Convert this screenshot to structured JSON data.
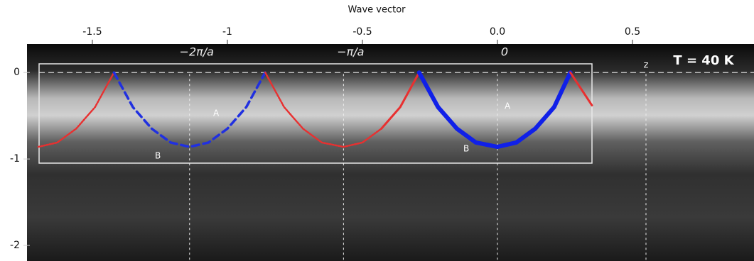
{
  "chart_data": {
    "type": "line",
    "title": "Wave vector",
    "annotation": "T = 40 K",
    "band_labels": [
      "A",
      "A",
      "B",
      "B"
    ],
    "xlim": [
      -1.742,
      0.95
    ],
    "ylim": [
      -2.18,
      0.33
    ],
    "xticks": [
      -1.5,
      -1,
      -0.5,
      {
        "value": 0,
        "label": "0.0"
      },
      0.5
    ],
    "yticks": [
      0,
      -1,
      -2
    ],
    "reference_lines": [
      {
        "value": -1.14,
        "label": "−2π/a"
      },
      {
        "value": -0.57,
        "label": "−π/a"
      },
      {
        "value": 0,
        "label": "0"
      },
      {
        "value": 0.55,
        "label": "z"
      }
    ],
    "series": [
      {
        "color": "#e83030",
        "style": "dotted",
        "x": [
          -1.7,
          -1.63,
          -1.56,
          -1.49,
          -1.42
        ],
        "values": [
          -0.86,
          -0.81,
          -0.65,
          -0.4,
          0
        ]
      },
      {
        "color": "#2030e0",
        "style": "dashed",
        "x": [
          -1.42,
          -1.35,
          -1.28,
          -1.21,
          -1.14,
          -1.07,
          -1.0,
          -0.93,
          -0.86
        ],
        "values": [
          0,
          -0.4,
          -0.65,
          -0.81,
          -0.86,
          -0.81,
          -0.65,
          -0.4,
          0
        ]
      },
      {
        "color": "#e83030",
        "style": "dotted",
        "x": [
          -0.86,
          -0.79,
          -0.72,
          -0.65,
          -0.57,
          -0.5,
          -0.43
        ],
        "values": [
          0,
          -0.4,
          -0.65,
          -0.81,
          -0.86,
          -0.81,
          -0.65
        ]
      },
      {
        "color": "#e83030",
        "style": "solid",
        "x": [
          -0.43,
          -0.36,
          -0.29
        ],
        "values": [
          -0.65,
          -0.4,
          0
        ]
      },
      {
        "color": "#1020e8",
        "style": "thick",
        "x": [
          -0.29,
          -0.22,
          -0.15,
          -0.08,
          0,
          0.07,
          0.14,
          0.21,
          0.27
        ],
        "values": [
          0,
          -0.4,
          -0.65,
          -0.81,
          -0.86,
          -0.81,
          -0.65,
          -0.4,
          0
        ]
      },
      {
        "color": "#e83030",
        "style": "solid",
        "x": [
          0.27,
          0.35
        ],
        "values": [
          0,
          -0.38
        ]
      }
    ]
  }
}
